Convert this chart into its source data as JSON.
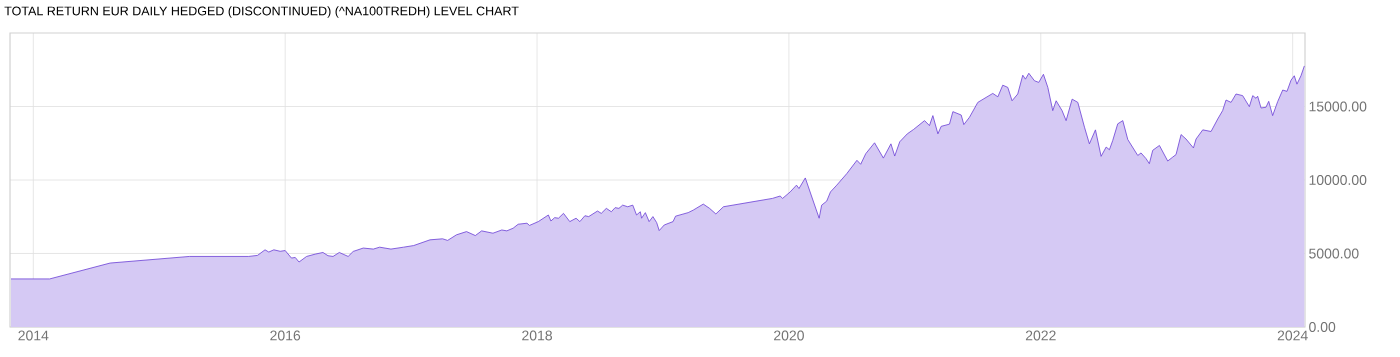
{
  "chart_data": {
    "type": "area",
    "title": "TOTAL RETURN EUR DAILY HEDGED (DISCONTINUED) (^NA100TREDH) LEVEL CHART",
    "x": [
      2013.823,
      2014.13,
      2014.61,
      2015.24,
      2015.71,
      2015.78,
      2015.84,
      2015.87,
      2015.91,
      2015.96,
      2016.0,
      2016.05,
      2016.08,
      2016.11,
      2016.17,
      2016.24,
      2016.3,
      2016.34,
      2016.38,
      2016.43,
      2016.5,
      2016.54,
      2016.62,
      2016.7,
      2016.75,
      2016.84,
      2016.94,
      2017.02,
      2017.15,
      2017.25,
      2017.29,
      2017.36,
      2017.44,
      2017.51,
      2017.56,
      2017.65,
      2017.72,
      2017.76,
      2017.81,
      2017.85,
      2017.92,
      2017.94,
      2018.01,
      2018.09,
      2018.11,
      2018.14,
      2018.17,
      2018.21,
      2018.26,
      2018.31,
      2018.34,
      2018.38,
      2018.41,
      2018.48,
      2018.51,
      2018.55,
      2018.59,
      2018.62,
      2018.65,
      2018.68,
      2018.72,
      2018.76,
      2018.79,
      2018.82,
      2018.83,
      2018.86,
      2018.89,
      2018.92,
      2018.95,
      2018.97,
      2019.01,
      2019.08,
      2019.1,
      2019.2,
      2019.24,
      2019.32,
      2019.37,
      2019.42,
      2019.48,
      2019.87,
      2019.93,
      2019.95,
      2020.01,
      2020.06,
      2020.08,
      2020.13,
      2020.24,
      2020.26,
      2020.3,
      2020.33,
      2020.38,
      2020.46,
      2020.54,
      2020.57,
      2020.61,
      2020.68,
      2020.75,
      2020.81,
      2020.84,
      2020.88,
      2020.94,
      2020.99,
      2021.077,
      2021.116,
      2021.143,
      2021.183,
      2021.209,
      2021.275,
      2021.302,
      2021.368,
      2021.389,
      2021.434,
      2021.5,
      2021.619,
      2021.659,
      2021.698,
      2021.738,
      2021.772,
      2021.817,
      2021.857,
      2021.878,
      2021.905,
      2021.95,
      2021.984,
      2022.021,
      2022.056,
      2022.095,
      2022.122,
      2022.169,
      2022.201,
      2022.249,
      2022.294,
      2022.347,
      2022.386,
      2022.434,
      2022.479,
      2022.519,
      2022.545,
      2022.571,
      2022.611,
      2022.651,
      2022.691,
      2022.77,
      2022.796,
      2022.836,
      2022.862,
      2022.889,
      2022.942,
      2023.008,
      2023.048,
      2023.074,
      2023.114,
      2023.153,
      2023.212,
      2023.233,
      2023.286,
      2023.352,
      2023.405,
      2023.444,
      2023.471,
      2023.511,
      2023.55,
      2023.603,
      2023.656,
      2023.683,
      2023.709,
      2023.722,
      2023.749,
      2023.788,
      2023.81,
      2023.841,
      2023.881,
      2023.921,
      2023.955,
      2023.987,
      2024.013,
      2024.034,
      2024.066,
      2024.093
    ],
    "series": [
      {
        "color": "#6a3fd6",
        "values": [
          3270,
          3270,
          4350,
          4800,
          4800,
          4870,
          5250,
          5100,
          5250,
          5150,
          5200,
          4690,
          4730,
          4420,
          4800,
          4960,
          5070,
          4850,
          4800,
          5070,
          4800,
          5140,
          5370,
          5300,
          5430,
          5300,
          5430,
          5540,
          5930,
          6000,
          5890,
          6270,
          6490,
          6220,
          6540,
          6380,
          6600,
          6540,
          6720,
          6990,
          7060,
          6910,
          7170,
          7620,
          7210,
          7440,
          7400,
          7730,
          7170,
          7400,
          7170,
          7570,
          7510,
          7890,
          7730,
          8070,
          7840,
          8120,
          8070,
          8290,
          8180,
          8290,
          7620,
          7840,
          7400,
          7780,
          7170,
          7510,
          7100,
          6560,
          6940,
          7170,
          7540,
          7780,
          7950,
          8360,
          8070,
          7690,
          8180,
          8750,
          8910,
          8750,
          9190,
          9650,
          9420,
          10140,
          7400,
          8290,
          8560,
          9190,
          9650,
          10440,
          11340,
          11070,
          11790,
          12530,
          11490,
          12460,
          11630,
          12600,
          13140,
          13440,
          14040,
          13700,
          14380,
          13140,
          13650,
          13800,
          14650,
          14420,
          13770,
          14270,
          15280,
          15890,
          15660,
          16450,
          16300,
          15390,
          15850,
          17130,
          16860,
          17260,
          16750,
          16640,
          17190,
          16300,
          14720,
          15390,
          14720,
          14040,
          15500,
          15280,
          13590,
          12460,
          13410,
          11610,
          12240,
          12060,
          12680,
          13820,
          14040,
          12750,
          11670,
          11840,
          11450,
          11110,
          12020,
          12350,
          11290,
          11560,
          11730,
          13090,
          12790,
          12180,
          12790,
          13410,
          13300,
          14150,
          14720,
          15440,
          15280,
          15850,
          15740,
          14990,
          15740,
          15560,
          15700,
          14900,
          14950,
          15350,
          14380,
          15330,
          16120,
          16030,
          16790,
          17090,
          16520,
          17090,
          17760
        ]
      }
    ],
    "xlim": [
      2013.815,
      2024.098
    ],
    "ylim": [
      0,
      20000
    ],
    "xticks": [
      2014,
      2016,
      2018,
      2020,
      2022,
      2024
    ],
    "yticks": [
      {
        "value": 0,
        "label": "0.00"
      },
      {
        "value": 5000,
        "label": "5000.00"
      },
      {
        "value": 10000,
        "label": "10000.00"
      },
      {
        "value": 15000,
        "label": "15000.00"
      }
    ],
    "grid": true
  }
}
